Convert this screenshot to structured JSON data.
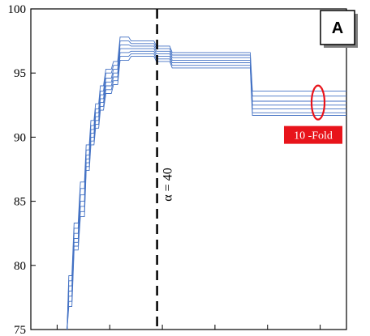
{
  "chart_data": {
    "type": "line",
    "panel_label": "A",
    "xlabel": "",
    "ylabel": "",
    "ylim": [
      75,
      100
    ],
    "xlim": [
      0,
      100
    ],
    "y_ticks": [
      "75",
      "80",
      "85",
      "90",
      "95",
      "100"
    ],
    "x_ticks_count": 6,
    "grid": false,
    "legend": "none",
    "colors": {
      "series": "#4472c4",
      "annotation": "#e8141b",
      "axis": "#000000"
    },
    "vline": {
      "x": 40,
      "label": "α = 40",
      "style": "dashed"
    },
    "annotation": {
      "label": "10 -Fold",
      "x": 91,
      "y": 92.7
    },
    "series": [
      {
        "x": [
          11.5,
          13,
          15,
          17,
          18.5,
          20,
          21.5,
          23,
          25.5,
          27.5,
          31,
          39,
          44,
          51,
          69.5,
          71.5,
          100
        ],
        "y": [
          75,
          79.2,
          83.3,
          86.5,
          89.4,
          91.3,
          92.6,
          94.0,
          95.3,
          95.9,
          97.8,
          97.5,
          97.1,
          96.6,
          96.6,
          93.6,
          93.6
        ]
      },
      {
        "x": [
          11.5,
          13,
          15,
          17,
          18.5,
          20,
          21.5,
          23,
          25.5,
          27.5,
          31,
          39,
          44,
          51,
          69.5,
          71.5,
          100
        ],
        "y": [
          75,
          78.8,
          82.9,
          86.0,
          89.0,
          90.9,
          92.2,
          93.6,
          95.0,
          95.6,
          97.5,
          97.3,
          96.9,
          96.4,
          96.4,
          93.2,
          93.2
        ]
      },
      {
        "x": [
          11.5,
          13,
          15,
          17,
          18.5,
          20,
          21.5,
          23,
          25.5,
          27.5,
          31,
          39,
          44,
          51,
          69.5,
          71.5,
          100
        ],
        "y": [
          75,
          78.4,
          82.5,
          85.5,
          88.6,
          90.6,
          91.9,
          93.3,
          94.6,
          95.3,
          97.2,
          97.1,
          96.7,
          96.2,
          96.2,
          92.8,
          92.8
        ]
      },
      {
        "x": [
          11.5,
          13,
          15,
          17,
          18.5,
          20,
          21.5,
          23,
          25.5,
          27.5,
          31,
          39,
          44,
          51,
          69.5,
          71.5,
          100
        ],
        "y": [
          75,
          78.0,
          82.1,
          85.0,
          88.3,
          90.3,
          91.6,
          93.0,
          94.3,
          95.0,
          96.9,
          96.9,
          96.5,
          96.0,
          96.0,
          92.5,
          92.5
        ]
      },
      {
        "x": [
          11.5,
          13,
          15,
          17,
          18.5,
          20,
          21.5,
          23,
          25.5,
          27.5,
          31,
          39,
          44,
          51,
          69.5,
          71.5,
          100
        ],
        "y": [
          75,
          77.6,
          81.8,
          84.6,
          88.0,
          90.0,
          91.3,
          92.7,
          94.0,
          94.7,
          96.6,
          96.7,
          96.3,
          95.8,
          95.8,
          92.2,
          92.2
        ]
      },
      {
        "x": [
          11.5,
          13,
          15,
          17,
          18.5,
          20,
          21.5,
          23,
          25.5,
          27.5,
          31,
          39,
          44,
          51,
          69.5,
          71.5,
          100
        ],
        "y": [
          75,
          77.2,
          81.5,
          84.2,
          87.7,
          89.7,
          91.0,
          92.4,
          93.7,
          94.4,
          96.3,
          96.5,
          96.1,
          95.6,
          95.6,
          91.9,
          91.9
        ]
      },
      {
        "x": [
          11.5,
          13,
          15,
          17,
          18.5,
          20,
          21.5,
          23,
          25.5,
          27.5,
          31,
          39,
          44,
          51,
          69.5,
          71.5,
          100
        ],
        "y": [
          75,
          76.8,
          81.2,
          83.8,
          87.4,
          89.4,
          90.7,
          92.1,
          93.4,
          94.1,
          96.0,
          96.3,
          95.9,
          95.4,
          95.4,
          91.7,
          91.7
        ]
      }
    ]
  }
}
